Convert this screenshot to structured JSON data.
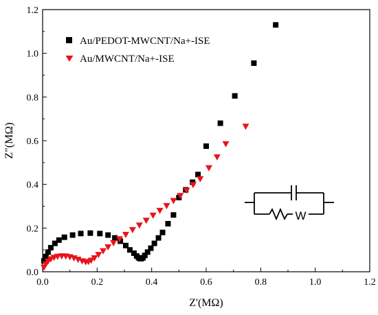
{
  "chart_data": {
    "type": "scatter",
    "title": "",
    "xlabel": "Z'(MΩ)",
    "ylabel": "Z\"(MΩ)",
    "xlim": [
      0.0,
      1.2
    ],
    "ylim": [
      0.0,
      1.2
    ],
    "x_ticks": [
      "0.0",
      "0.2",
      "0.4",
      "0.6",
      "0.8",
      "1.0",
      "1.2"
    ],
    "y_ticks": [
      "0.0",
      "0.2",
      "0.4",
      "0.6",
      "0.8",
      "1.0",
      "1.2"
    ],
    "grid": false,
    "legend_position": "top-left",
    "series": [
      {
        "name": "Au/PEDOT-MWCNT/Na+-ISE",
        "marker": "square",
        "color": "#000000",
        "x": [
          0.005,
          0.012,
          0.02,
          0.03,
          0.045,
          0.06,
          0.08,
          0.11,
          0.14,
          0.175,
          0.21,
          0.24,
          0.265,
          0.285,
          0.305,
          0.32,
          0.335,
          0.345,
          0.352,
          0.358,
          0.362,
          0.368,
          0.375,
          0.385,
          0.397,
          0.41,
          0.425,
          0.44,
          0.46,
          0.48,
          0.5,
          0.525,
          0.55,
          0.57,
          0.6,
          0.652,
          0.705,
          0.775,
          0.855
        ],
        "y": [
          0.05,
          0.07,
          0.09,
          0.11,
          0.13,
          0.145,
          0.158,
          0.168,
          0.175,
          0.177,
          0.175,
          0.168,
          0.155,
          0.14,
          0.12,
          0.1,
          0.085,
          0.072,
          0.064,
          0.06,
          0.06,
          0.064,
          0.075,
          0.09,
          0.108,
          0.13,
          0.155,
          0.18,
          0.22,
          0.26,
          0.34,
          0.375,
          0.41,
          0.445,
          0.575,
          0.68,
          0.805,
          0.955,
          1.13
        ]
      },
      {
        "name": "Au/MWCNT/Na+-ISE",
        "marker": "triangle-down",
        "color": "#e8141c",
        "x": [
          0.005,
          0.012,
          0.02,
          0.03,
          0.042,
          0.055,
          0.07,
          0.085,
          0.1,
          0.115,
          0.13,
          0.145,
          0.158,
          0.168,
          0.178,
          0.19,
          0.205,
          0.222,
          0.24,
          0.26,
          0.282,
          0.305,
          0.33,
          0.355,
          0.38,
          0.405,
          0.43,
          0.455,
          0.48,
          0.505,
          0.528,
          0.552,
          0.578,
          0.61,
          0.64,
          0.672,
          0.745
        ],
        "y": [
          0.02,
          0.035,
          0.048,
          0.058,
          0.065,
          0.07,
          0.072,
          0.071,
          0.068,
          0.063,
          0.056,
          0.049,
          0.045,
          0.046,
          0.052,
          0.063,
          0.078,
          0.095,
          0.113,
          0.132,
          0.15,
          0.17,
          0.192,
          0.213,
          0.235,
          0.258,
          0.28,
          0.302,
          0.325,
          0.348,
          0.372,
          0.398,
          0.425,
          0.475,
          0.525,
          0.585,
          0.665
        ]
      }
    ]
  },
  "inset": {
    "icon": "equivalent-circuit-icon",
    "warburg_label": "W"
  }
}
